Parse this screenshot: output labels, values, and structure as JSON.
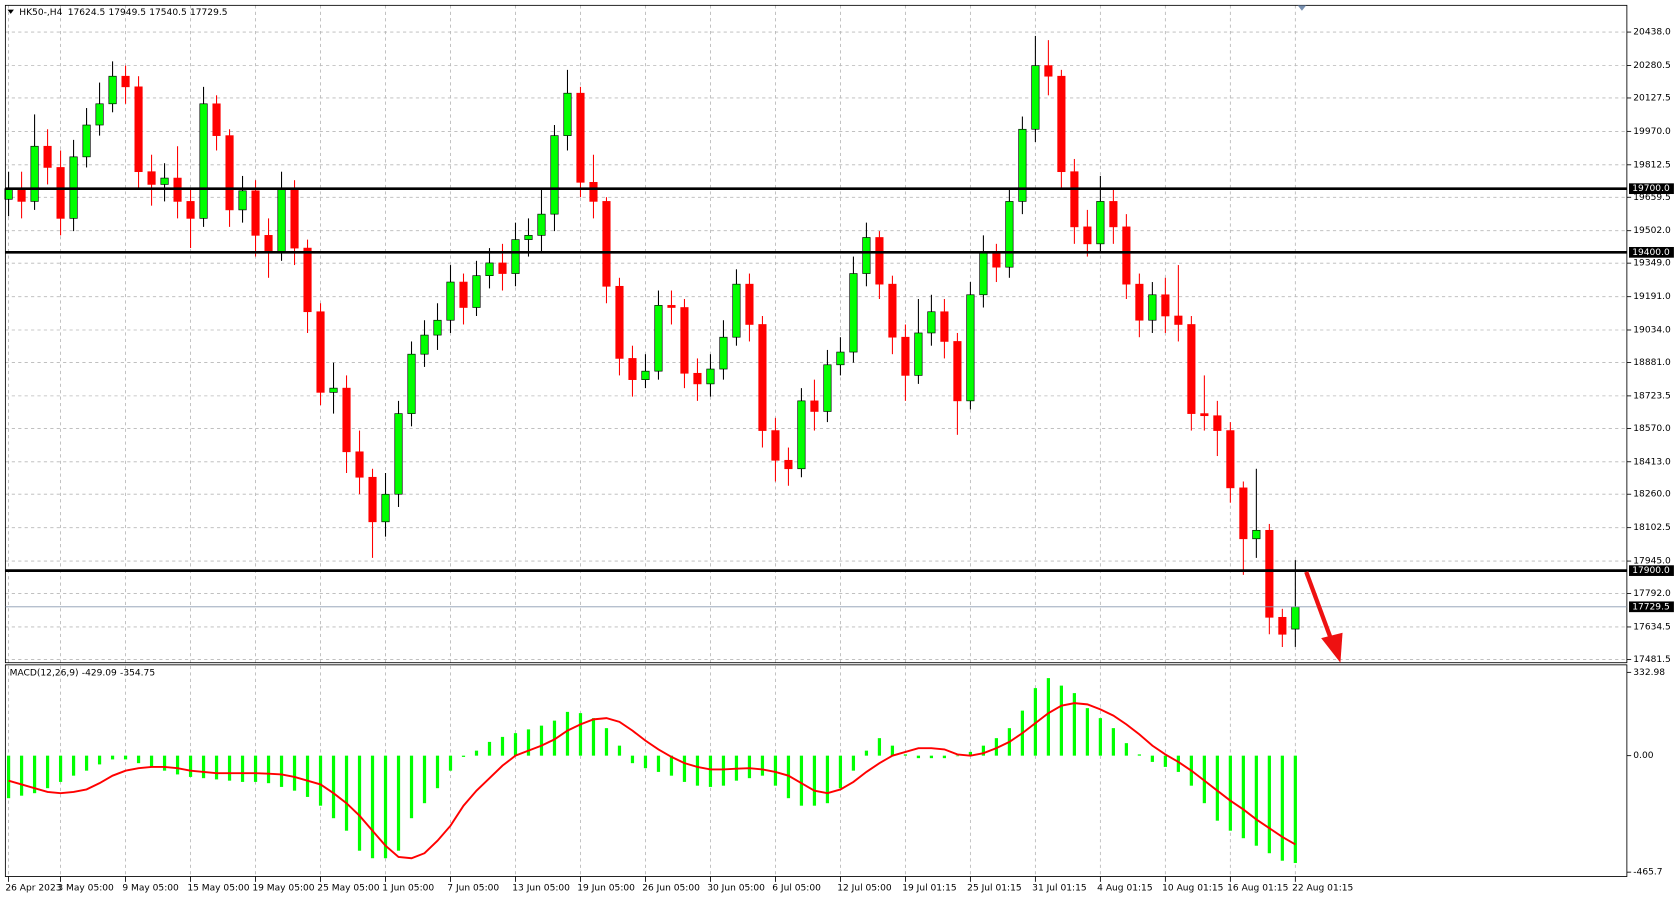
{
  "chart_data": [
    {
      "type": "candlestick",
      "symbol": "HK50-,H4",
      "open": [
        19650,
        19700,
        19640,
        19900,
        19800,
        19560,
        19850,
        20000,
        20100,
        20230,
        20180,
        19780,
        19720,
        19750,
        19640,
        19560,
        20100,
        19950,
        19600,
        19690,
        19480,
        19400,
        19700,
        19420,
        19120,
        18740,
        18760,
        18460,
        18340,
        18130,
        18260,
        18640,
        18920,
        19010,
        19080,
        19260,
        19140,
        19290,
        19350,
        19300,
        19460,
        19480,
        19580,
        19950,
        20150,
        19730,
        19640,
        19240,
        18900,
        18800,
        18840,
        19150,
        19140,
        18830,
        18780,
        18850,
        19000,
        19250,
        19060,
        18560,
        18420,
        18380,
        18700,
        18650,
        18870,
        18930,
        19300,
        19470,
        19250,
        19000,
        18820,
        19020,
        19120,
        18980,
        18700,
        19200,
        19400,
        19330,
        19640,
        19980,
        20280,
        20230,
        19780,
        19520,
        19440,
        19640,
        19520,
        19250,
        19080,
        19200,
        19100,
        19060,
        18640,
        18630,
        18560,
        18290,
        18050,
        18090,
        17680,
        17624.5
      ],
      "high": [
        19780,
        19780,
        20050,
        19980,
        19880,
        19930,
        20080,
        20200,
        20300,
        20280,
        20230,
        19860,
        19820,
        19900,
        19700,
        20180,
        20140,
        19980,
        19760,
        19740,
        19560,
        19780,
        19740,
        19460,
        19160,
        18880,
        18820,
        18560,
        18380,
        18360,
        18700,
        18980,
        19080,
        19160,
        19340,
        19300,
        19360,
        19420,
        19440,
        19540,
        19560,
        19700,
        20000,
        20260,
        20180,
        19860,
        19660,
        19280,
        18960,
        18920,
        19220,
        19220,
        19180,
        18900,
        18920,
        19080,
        19320,
        19300,
        19100,
        18620,
        18480,
        18760,
        18800,
        18940,
        19000,
        19380,
        19540,
        19500,
        19290,
        19060,
        19180,
        19200,
        19180,
        19020,
        19260,
        19480,
        19440,
        19700,
        20040,
        20420,
        20400,
        20260,
        19840,
        19600,
        19760,
        19700,
        19580,
        19300,
        19260,
        19280,
        19340,
        19100,
        18820,
        18700,
        18600,
        18320,
        18380,
        18120,
        17720,
        17949.5
      ],
      "low": [
        19570,
        19560,
        19600,
        19720,
        19480,
        19500,
        19800,
        19950,
        20060,
        20100,
        19700,
        19620,
        19640,
        19560,
        19420,
        19520,
        19880,
        19520,
        19540,
        19380,
        19280,
        19360,
        19340,
        19020,
        18680,
        18640,
        18360,
        18260,
        17960,
        18060,
        18200,
        18580,
        18860,
        18940,
        19020,
        19060,
        19100,
        19230,
        19220,
        19240,
        19380,
        19400,
        19500,
        19880,
        19660,
        19560,
        19160,
        18820,
        18720,
        18760,
        18800,
        19060,
        18760,
        18700,
        18720,
        18800,
        18960,
        18980,
        18480,
        18320,
        18300,
        18340,
        18560,
        18600,
        18820,
        18880,
        19240,
        19180,
        18920,
        18700,
        18780,
        18960,
        18900,
        18540,
        18660,
        19140,
        19260,
        19280,
        19580,
        19920,
        20140,
        19700,
        19440,
        19380,
        19400,
        19440,
        19180,
        19000,
        19020,
        19020,
        18980,
        18560,
        18560,
        18440,
        18220,
        17880,
        17960,
        17600,
        17540,
        17540.5
      ],
      "close": [
        19700,
        19640,
        19900,
        19800,
        19560,
        19850,
        20000,
        20100,
        20230,
        20180,
        19780,
        19720,
        19750,
        19640,
        19560,
        20100,
        19950,
        19600,
        19690,
        19480,
        19400,
        19700,
        19420,
        19120,
        18740,
        18760,
        18460,
        18340,
        18130,
        18260,
        18640,
        18920,
        19010,
        19080,
        19260,
        19140,
        19290,
        19350,
        19300,
        19460,
        19480,
        19580,
        19950,
        20150,
        19730,
        19640,
        19240,
        18900,
        18800,
        18840,
        19150,
        19140,
        18830,
        18780,
        18850,
        19000,
        19250,
        19060,
        18560,
        18420,
        18380,
        18700,
        18650,
        18870,
        18930,
        19300,
        19470,
        19250,
        19000,
        18820,
        19020,
        19120,
        18980,
        18700,
        19200,
        19400,
        19330,
        19640,
        19980,
        20280,
        20230,
        19780,
        19520,
        19440,
        19640,
        19520,
        19250,
        19080,
        19200,
        19100,
        19060,
        18640,
        18630,
        18560,
        18290,
        18050,
        18090,
        17680,
        17600,
        17729.5
      ],
      "up_color": "#00ff00",
      "down_color": "#ff0000",
      "ylim": [
        17466,
        20564
      ],
      "yticks": [
        {
          "value": 20438,
          "label": "20438.0"
        },
        20280.5,
        20127.5,
        {
          "value": 19970,
          "label": "19970.0"
        },
        19812.5,
        19659.5,
        {
          "value": 19502,
          "label": "19502.0"
        },
        {
          "value": 19349,
          "label": "19349.0"
        },
        {
          "value": 19191,
          "label": "19191.0"
        },
        {
          "value": 19034,
          "label": "19034.0"
        },
        {
          "value": 18881,
          "label": "18881.0"
        },
        18723.5,
        {
          "value": 18570,
          "label": "18570.0"
        },
        {
          "value": 18413,
          "label": "18413.0"
        },
        {
          "value": 18260,
          "label": "18260.0"
        },
        18102.5,
        {
          "value": 17945,
          "label": "17945.0"
        },
        {
          "value": 17792,
          "label": "17792.0"
        },
        17634.5,
        17481.5
      ],
      "levels": [
        {
          "value": 19700,
          "label": "19700.0"
        },
        {
          "value": 19400,
          "label": "19400.0"
        },
        {
          "value": 17900,
          "label": "17900.0"
        }
      ],
      "xticks": [
        {
          "value": 0,
          "label": "26 Apr 2023"
        },
        {
          "value": 4,
          "label": "3 May 05:00"
        },
        {
          "value": 9,
          "label": "9 May 05:00"
        },
        {
          "value": 14,
          "label": "15 May 05:00"
        },
        {
          "value": 19,
          "label": "19 May 05:00"
        },
        {
          "value": 24,
          "label": "25 May 05:00"
        },
        {
          "value": 29,
          "label": "1 Jun 05:00"
        },
        {
          "value": 34,
          "label": "7 Jun 05:00"
        },
        {
          "value": 39,
          "label": "13 Jun 05:00"
        },
        {
          "value": 44,
          "label": "19 Jun 05:00"
        },
        {
          "value": 49,
          "label": "26 Jun 05:00"
        },
        {
          "value": 54,
          "label": "30 Jun 05:00"
        },
        {
          "value": 59,
          "label": "6 Jul 05:00"
        },
        {
          "value": 64,
          "label": "12 Jul 05:00"
        },
        {
          "value": 69,
          "label": "19 Jul 01:15"
        },
        {
          "value": 74,
          "label": "25 Jul 01:15"
        },
        {
          "value": 79,
          "label": "31 Jul 01:15"
        },
        {
          "value": 84,
          "label": "4 Aug 01:15"
        },
        {
          "value": 89,
          "label": "10 Aug 01:15"
        },
        {
          "value": 94,
          "label": "16 Aug 01:15"
        },
        {
          "value": 99,
          "label": "22 Aug 01:15"
        }
      ],
      "grid": true
    },
    {
      "type": "macd",
      "title": "MACD(12,26,9)",
      "histogram": [
        -170,
        -160,
        -150,
        -130,
        -105,
        -80,
        -60,
        -35,
        -15,
        -15,
        -30,
        -45,
        -60,
        -75,
        -85,
        -90,
        -95,
        -100,
        -105,
        -105,
        -110,
        -125,
        -140,
        -165,
        -200,
        -250,
        -300,
        -380,
        -410,
        -410,
        -380,
        -250,
        -190,
        -130,
        -60,
        -5,
        20,
        55,
        75,
        90,
        105,
        120,
        140,
        175,
        170,
        150,
        110,
        40,
        -30,
        -50,
        -65,
        -80,
        -105,
        -120,
        -125,
        -120,
        -100,
        -90,
        -80,
        -120,
        -170,
        -200,
        -200,
        -190,
        -130,
        -60,
        20,
        70,
        40,
        5,
        -10,
        -10,
        -10,
        0,
        15,
        40,
        70,
        110,
        180,
        270,
        310,
        280,
        250,
        190,
        150,
        110,
        50,
        5,
        -25,
        -45,
        -65,
        -120,
        -190,
        -260,
        -300,
        -330,
        -360,
        -390,
        -420,
        -429.09
      ],
      "signal": [
        -100,
        -115,
        -130,
        -145,
        -150,
        -145,
        -135,
        -110,
        -80,
        -60,
        -50,
        -45,
        -45,
        -50,
        -60,
        -65,
        -70,
        -70,
        -70,
        -70,
        -72,
        -75,
        -85,
        -100,
        -115,
        -150,
        -190,
        -240,
        -300,
        -360,
        -405,
        -410,
        -390,
        -340,
        -280,
        -200,
        -140,
        -90,
        -40,
        0,
        20,
        40,
        65,
        100,
        125,
        145,
        150,
        135,
        100,
        60,
        25,
        -5,
        -30,
        -45,
        -55,
        -55,
        -52,
        -50,
        -55,
        -65,
        -80,
        -110,
        -140,
        -150,
        -135,
        -105,
        -65,
        -30,
        0,
        15,
        30,
        30,
        25,
        5,
        0,
        10,
        30,
        55,
        90,
        130,
        170,
        200,
        210,
        205,
        185,
        160,
        125,
        85,
        40,
        5,
        -25,
        -60,
        -100,
        -140,
        -180,
        -215,
        -255,
        -290,
        -325,
        -354.75
      ],
      "histogram_color": "#00ff00",
      "signal_color": "#ff0000",
      "ylim": [
        -483,
        363
      ],
      "yticks": [
        332.98,
        {
          "value": 0,
          "label": "0.00"
        },
        -465.7
      ]
    }
  ]
}
